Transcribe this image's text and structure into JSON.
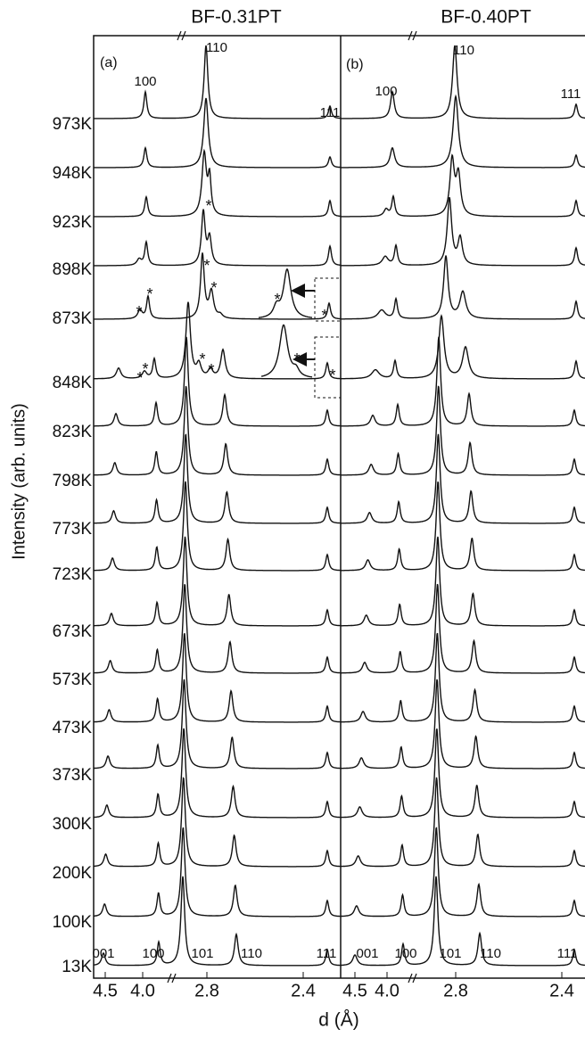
{
  "panels": [
    {
      "title": "BF-0.31PT",
      "tag": "(a)",
      "top_peaks": [
        "100",
        "110",
        "111"
      ],
      "bottom_peaks": [
        "001",
        "100",
        "101",
        "110",
        "111"
      ],
      "x_ticks": [
        "4.5",
        "4.0",
        "2.8",
        "2.4"
      ]
    },
    {
      "title": "BF-0.40PT",
      "tag": "(b)",
      "top_peaks": [
        "100",
        "110",
        "111"
      ],
      "bottom_peaks": [
        "001",
        "100",
        "101",
        "110",
        "111"
      ],
      "x_ticks": [
        "4.5",
        "4.0",
        "2.8",
        "2.4"
      ]
    }
  ],
  "temperatures": [
    "973K",
    "948K",
    "923K",
    "898K",
    "873K",
    "848K",
    "823K",
    "798K",
    "773K",
    "723K",
    "673K",
    "573K",
    "473K",
    "373K",
    "300K",
    "200K",
    "100K",
    "13K"
  ],
  "y_axis_label": "Intensity (arb. units)",
  "x_axis_label": "d (Å)",
  "asterisk": "*"
}
